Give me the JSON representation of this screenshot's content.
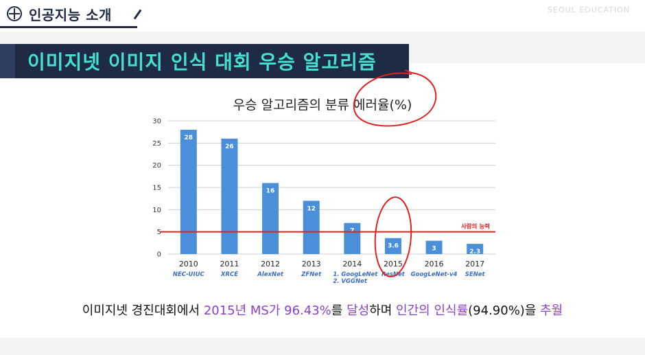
{
  "header": {
    "section_title": "인공지능 소개",
    "watermark": "SEOUL EDUCATION"
  },
  "slide": {
    "title": "이미지넷 이미지 인식 대회 우승 알고리즘",
    "caption_parts": [
      {
        "text": "이미지넷 경진대회에서 ",
        "highlight": false
      },
      {
        "text": "2015년 MS가 96.43%",
        "highlight": true
      },
      {
        "text": "를 ",
        "highlight": false
      },
      {
        "text": "달성",
        "highlight": true
      },
      {
        "text": "하며 ",
        "highlight": false
      },
      {
        "text": "인간의 인식률",
        "highlight": true
      },
      {
        "text": "(94.90%)을 ",
        "highlight": false
      },
      {
        "text": "추월",
        "highlight": true
      }
    ]
  },
  "colors": {
    "navy": "#1f2a44",
    "teal": "#46e0d0",
    "bar": "#4a8fd8",
    "human_line": "#e02020",
    "algo_label": "#3a6fc4",
    "highlight": "#8a3fc9"
  },
  "chart_data": {
    "type": "bar",
    "title": "우승 알고리즘의 분류 에러율(%)",
    "categories": [
      "2010",
      "2011",
      "2012",
      "2013",
      "2014",
      "2015",
      "2016",
      "2017"
    ],
    "algorithms": [
      "NEC-UIUC",
      "XRCE",
      "AlexNet",
      "ZFNet",
      "1. GoogLeNet\n2. VGGNet",
      "ResNet",
      "GoogLeNet-v4",
      "SENet"
    ],
    "values": [
      28,
      26,
      16,
      12,
      7,
      3.6,
      3,
      2.3
    ],
    "value_labels": [
      "28",
      "26",
      "16",
      "12",
      "7",
      "3.6",
      "3",
      "2.3"
    ],
    "yticks": [
      0,
      5,
      10,
      15,
      20,
      25,
      30
    ],
    "ylim": [
      0,
      30
    ],
    "grid": true,
    "reference_line": {
      "value": 5,
      "label": "사람의 능력"
    }
  }
}
